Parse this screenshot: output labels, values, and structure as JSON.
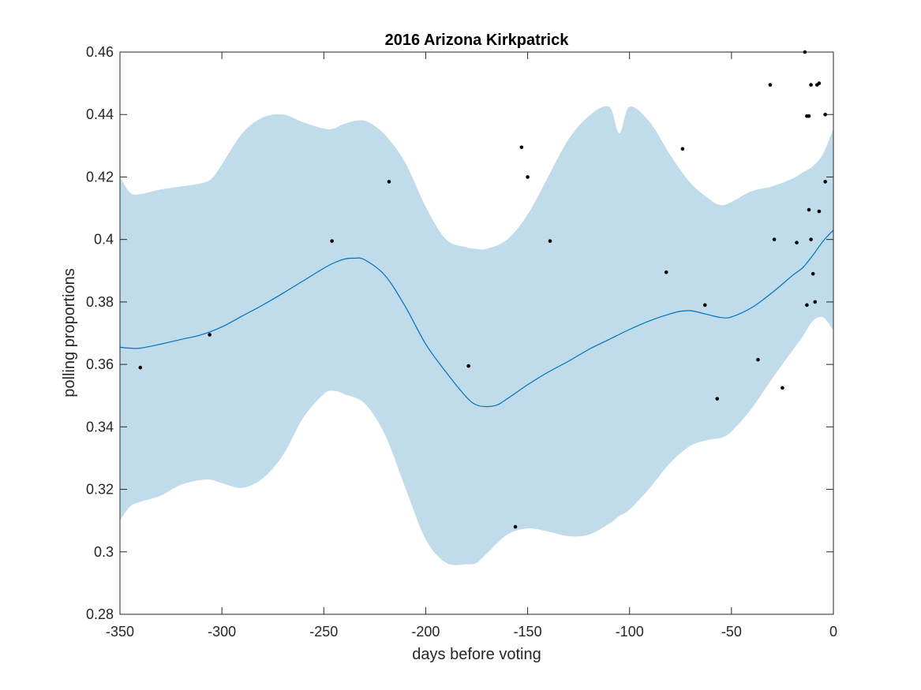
{
  "chart_data": {
    "type": "line",
    "title": "2016 Arizona Kirkpatrick",
    "xlabel": "days before voting",
    "ylabel": "polling proportions",
    "xlim": [
      -350,
      0
    ],
    "ylim": [
      0.28,
      0.46
    ],
    "xticks": [
      -350,
      -300,
      -250,
      -200,
      -150,
      -100,
      -50,
      0
    ],
    "xtick_labels": [
      "-350",
      "-300",
      "-250",
      "-200",
      "-150",
      "-100",
      "-50",
      "0"
    ],
    "yticks": [
      0.28,
      0.3,
      0.32,
      0.34,
      0.36,
      0.38,
      0.4,
      0.42,
      0.44,
      0.46
    ],
    "ytick_labels": [
      "0.28",
      "0.3",
      "0.32",
      "0.34",
      "0.36",
      "0.38",
      "0.4",
      "0.42",
      "0.44",
      "0.46"
    ],
    "grid": false,
    "colors": {
      "band": "#c0dcea",
      "mean": "#0072bd",
      "points": "#000000",
      "axes": "#262626"
    },
    "band": {
      "x": [
        -350,
        -345,
        -340,
        -330,
        -320,
        -310,
        -305,
        -300,
        -290,
        -280,
        -270,
        -260,
        -250,
        -245,
        -240,
        -230,
        -220,
        -210,
        -200,
        -190,
        -180,
        -175,
        -170,
        -160,
        -150,
        -140,
        -130,
        -120,
        -110,
        -105,
        -100,
        -90,
        -80,
        -70,
        -60,
        -55,
        -50,
        -40,
        -30,
        -20,
        -15,
        -10,
        -5,
        0
      ],
      "upper": [
        0.42,
        0.415,
        0.4145,
        0.416,
        0.417,
        0.418,
        0.4195,
        0.424,
        0.434,
        0.439,
        0.44,
        0.4375,
        0.4355,
        0.4355,
        0.437,
        0.438,
        0.4335,
        0.4245,
        0.4105,
        0.4,
        0.3975,
        0.397,
        0.397,
        0.4,
        0.408,
        0.42,
        0.432,
        0.4395,
        0.4425,
        0.434,
        0.4425,
        0.4375,
        0.427,
        0.418,
        0.4125,
        0.411,
        0.412,
        0.4155,
        0.417,
        0.4195,
        0.4215,
        0.4235,
        0.4275,
        0.4355
      ],
      "lower": [
        0.31,
        0.3145,
        0.316,
        0.318,
        0.3215,
        0.323,
        0.323,
        0.322,
        0.3205,
        0.3235,
        0.331,
        0.343,
        0.3505,
        0.3515,
        0.3505,
        0.3475,
        0.3375,
        0.3205,
        0.304,
        0.2965,
        0.296,
        0.2965,
        0.2995,
        0.3055,
        0.3075,
        0.3065,
        0.305,
        0.3055,
        0.309,
        0.3115,
        0.3135,
        0.3205,
        0.3285,
        0.334,
        0.336,
        0.3365,
        0.3385,
        0.346,
        0.3555,
        0.3645,
        0.369,
        0.374,
        0.375,
        0.371
      ]
    },
    "series": [
      {
        "x": [
          -350,
          -345,
          -340,
          -330,
          -320,
          -310,
          -300,
          -290,
          -280,
          -270,
          -260,
          -250,
          -245,
          -240,
          -235,
          -230,
          -220,
          -210,
          -200,
          -190,
          -180,
          -175,
          -170,
          -165,
          -160,
          -150,
          -140,
          -130,
          -120,
          -110,
          -100,
          -90,
          -80,
          -75,
          -70,
          -65,
          -60,
          -55,
          -50,
          -40,
          -30,
          -20,
          -15,
          -10,
          -5,
          0
        ],
        "values": [
          0.3655,
          0.3652,
          0.3652,
          0.3665,
          0.368,
          0.3695,
          0.372,
          0.3755,
          0.379,
          0.3828,
          0.3868,
          0.3908,
          0.3925,
          0.3937,
          0.394,
          0.3935,
          0.3885,
          0.3785,
          0.3665,
          0.3575,
          0.3495,
          0.347,
          0.3465,
          0.347,
          0.349,
          0.3535,
          0.3575,
          0.361,
          0.3648,
          0.368,
          0.3712,
          0.374,
          0.3762,
          0.377,
          0.3772,
          0.3765,
          0.3757,
          0.375,
          0.3752,
          0.3782,
          0.383,
          0.3885,
          0.391,
          0.395,
          0.3995,
          0.403
        ]
      }
    ],
    "points": [
      {
        "x": -340,
        "y": 0.359
      },
      {
        "x": -306,
        "y": 0.3695
      },
      {
        "x": -246,
        "y": 0.3995
      },
      {
        "x": -218,
        "y": 0.4185
      },
      {
        "x": -179,
        "y": 0.3595
      },
      {
        "x": -156,
        "y": 0.308
      },
      {
        "x": -153,
        "y": 0.4295
      },
      {
        "x": -150,
        "y": 0.42
      },
      {
        "x": -139,
        "y": 0.3995
      },
      {
        "x": -82,
        "y": 0.3895
      },
      {
        "x": -74,
        "y": 0.429
      },
      {
        "x": -63,
        "y": 0.379
      },
      {
        "x": -57,
        "y": 0.349
      },
      {
        "x": -37,
        "y": 0.3615
      },
      {
        "x": -31,
        "y": 0.4495
      },
      {
        "x": -29,
        "y": 0.4
      },
      {
        "x": -25,
        "y": 0.3525
      },
      {
        "x": -18,
        "y": 0.399
      },
      {
        "x": -14,
        "y": 0.46
      },
      {
        "x": -13,
        "y": 0.379
      },
      {
        "x": -13,
        "y": 0.4395
      },
      {
        "x": -12,
        "y": 0.4395
      },
      {
        "x": -12,
        "y": 0.4095
      },
      {
        "x": -11,
        "y": 0.4495
      },
      {
        "x": -11,
        "y": 0.4
      },
      {
        "x": -10,
        "y": 0.389
      },
      {
        "x": -9,
        "y": 0.38
      },
      {
        "x": -8,
        "y": 0.4495
      },
      {
        "x": -7,
        "y": 0.45
      },
      {
        "x": -7,
        "y": 0.409
      },
      {
        "x": -4,
        "y": 0.4185
      },
      {
        "x": -4,
        "y": 0.44
      }
    ]
  }
}
